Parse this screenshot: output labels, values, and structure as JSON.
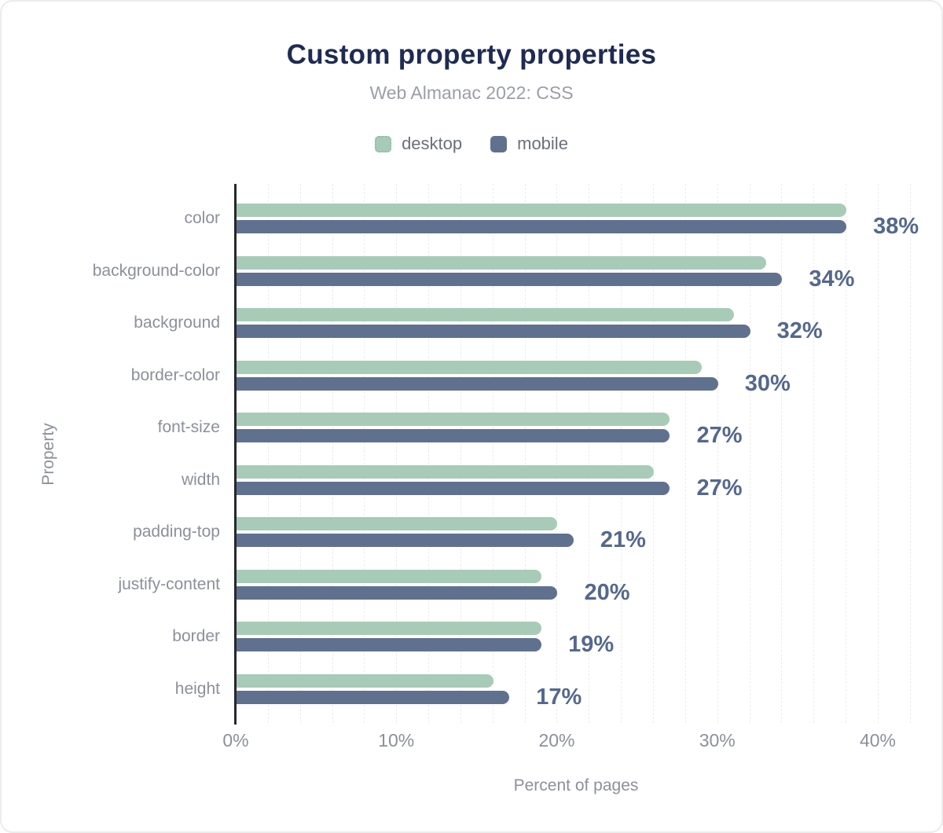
{
  "chart_data": {
    "type": "bar",
    "orientation": "horizontal",
    "title": "Custom property properties",
    "subtitle": "Web Almanac 2022: CSS",
    "xlabel": "Percent of pages",
    "ylabel": "Property",
    "categories": [
      "color",
      "background-color",
      "background",
      "border-color",
      "font-size",
      "width",
      "padding-top",
      "justify-content",
      "border",
      "height"
    ],
    "series": [
      {
        "name": "desktop",
        "color": "#a8cbb8",
        "swatch": "dotted",
        "values": [
          38,
          33,
          31,
          29,
          27,
          26,
          20,
          19,
          19,
          16
        ]
      },
      {
        "name": "mobile",
        "color": "#60718f",
        "swatch": "solid",
        "values": [
          38,
          34,
          32,
          30,
          27,
          27,
          21,
          20,
          19,
          17
        ]
      }
    ],
    "value_labels": [
      "38%",
      "34%",
      "32%",
      "30%",
      "27%",
      "27%",
      "21%",
      "20%",
      "19%",
      "17%"
    ],
    "value_labels_series": "mobile",
    "x_ticks": [
      {
        "value": 0,
        "label": "0%"
      },
      {
        "value": 10,
        "label": "10%"
      },
      {
        "value": 20,
        "label": "20%"
      },
      {
        "value": 30,
        "label": "30%"
      },
      {
        "value": 40,
        "label": "40%"
      }
    ],
    "xlim": [
      0,
      42.4
    ],
    "grid": {
      "show": true,
      "minor_step": 2
    },
    "legend_position": "top"
  },
  "colors": {
    "background": "#ffffff",
    "title": "#1e2b52",
    "subtitle": "#9a9ea6",
    "value_label": "#54688e",
    "axis_text": "#8b909a",
    "legend_text": "#6b7078",
    "gridline": "#ececec",
    "y_axis_line": "#26282e"
  }
}
